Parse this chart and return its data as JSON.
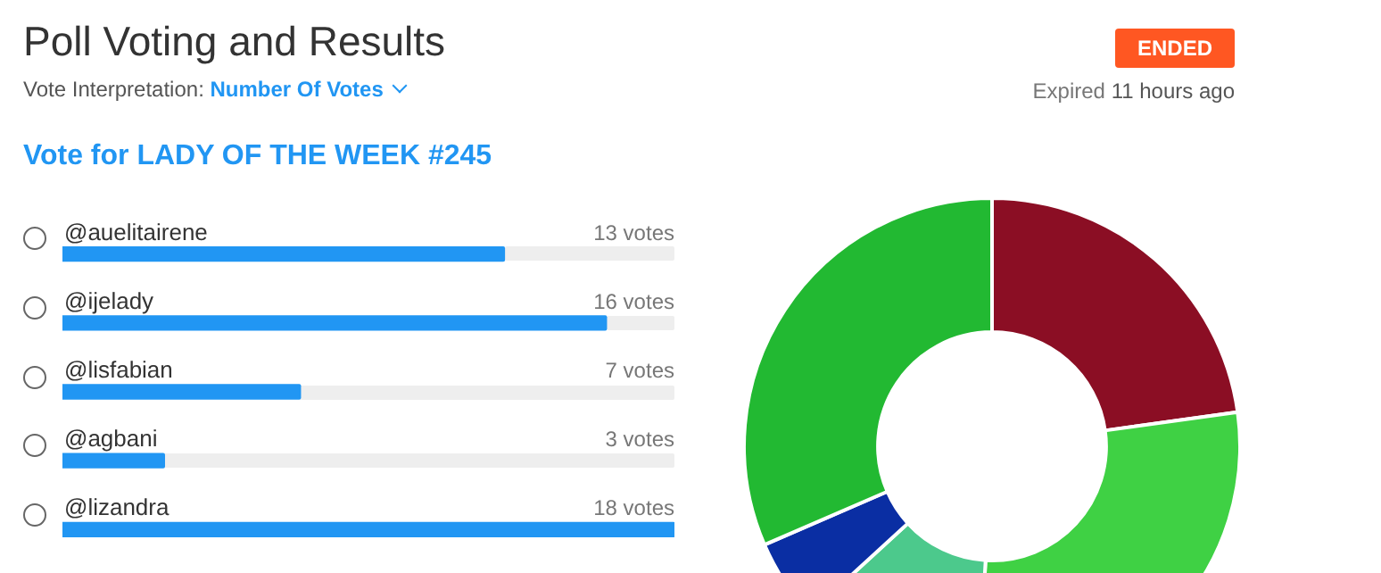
{
  "chart_data": [
    {
      "type": "bar",
      "orientation": "horizontal",
      "title": "Poll Voting and Results",
      "subtitle": "Vote for LADY OF THE WEEK #245",
      "annotations": [
        "Vote Interpretation:",
        "Number Of Votes",
        "ENDED",
        "Expired",
        "11 hours ago"
      ],
      "categories": [
        "@auelitairene",
        "@ijelady",
        "@lisfabian",
        "@agbani",
        "@lizandra"
      ],
      "values": [
        13,
        16,
        7,
        3,
        18
      ],
      "value_labels": [
        "13 votes",
        "16 votes",
        "7 votes",
        "3 votes",
        "18 votes"
      ],
      "color": "#2196f3"
    },
    {
      "type": "donut",
      "categories": [
        null,
        null,
        null,
        null,
        null
      ],
      "values": [
        22.8,
        28.1,
        12.3,
        5.3,
        31.5
      ],
      "colors": [
        "#8b0e24",
        "#3fd144",
        "#4cc98c",
        "#0a2ea3",
        "#22b932"
      ]
    }
  ]
}
